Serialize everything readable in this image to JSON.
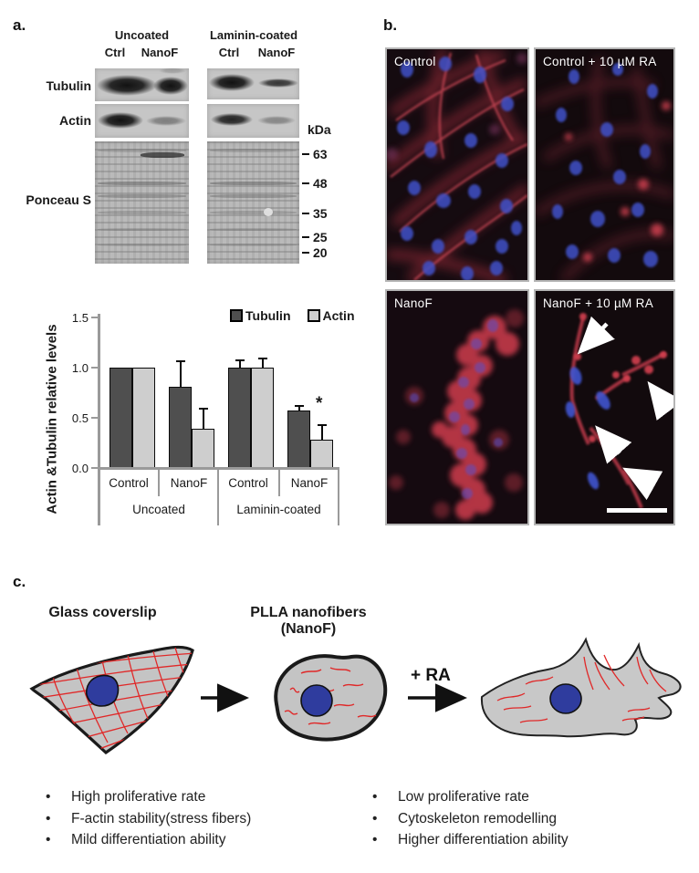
{
  "panel_a": {
    "label": "a.",
    "group_headers": [
      "Uncoated",
      "Laminin-coated"
    ],
    "lanes": [
      "Ctrl",
      "NanoF"
    ],
    "rows": [
      "Tubulin",
      "Actin",
      "Ponceau S"
    ],
    "kda": {
      "header": "kDa",
      "markers": [
        "63",
        "48",
        "35",
        "25",
        "20"
      ]
    }
  },
  "chart_data": {
    "type": "bar",
    "title": "",
    "xlabel": "",
    "ylabel": "Actin &Tubulin relative levels",
    "ylim": [
      0,
      1.5
    ],
    "ytick_labels": [
      "1.5",
      "1.0",
      "0.5",
      "0.0"
    ],
    "categories": [
      "Control",
      "NanoF",
      "Control",
      "NanoF"
    ],
    "group_labels": [
      "Uncoated",
      "Laminin-coated"
    ],
    "legend_position": "top-right",
    "grid": false,
    "series": [
      {
        "name": "Tubulin",
        "color": "#4f4f4f",
        "values": [
          1.0,
          0.81,
          1.0,
          0.57
        ],
        "errors": [
          0,
          0.26,
          0.08,
          0.06
        ]
      },
      {
        "name": "Actin",
        "color": "#cecece",
        "values": [
          1.0,
          0.39,
          1.0,
          0.28
        ],
        "errors": [
          0,
          0.21,
          0.1,
          0.16
        ]
      }
    ],
    "significance": {
      "marker": "*",
      "location": "Actin bar, NanoF Laminin-coated"
    }
  },
  "panel_b": {
    "label": "b.",
    "images": [
      {
        "title": "Control"
      },
      {
        "title": "Control + 10 µM RA"
      },
      {
        "title": "NanoF"
      },
      {
        "title": "NanoF + 10 µM RA",
        "annotations": "4 white arrows, white scale bar"
      }
    ]
  },
  "panel_c": {
    "label": "c.",
    "left_heading": "Glass coverslip",
    "right_heading": "PLLA nanofibers (NanoF)",
    "ra_label": "+ RA",
    "left_bullets": [
      "High proliferative rate",
      "F-actin stability(stress fibers)",
      "Mild differentiation ability"
    ],
    "right_bullets": [
      "Low proliferative rate",
      "Cytoskeleton remodelling",
      "Higher differentiation ability"
    ]
  },
  "colors": {
    "bar_dark": "#4f4f4f",
    "bar_light": "#cecece",
    "axis_gray": "#9a9a9a",
    "actin_red": "#c23a4b",
    "nucleus_blue": "#3f51c9",
    "diagram_cell_gray": "#c4c4c4",
    "diagram_nucleus_blue": "#2f3c9e",
    "diagram_fiber_red": "#e02828"
  }
}
